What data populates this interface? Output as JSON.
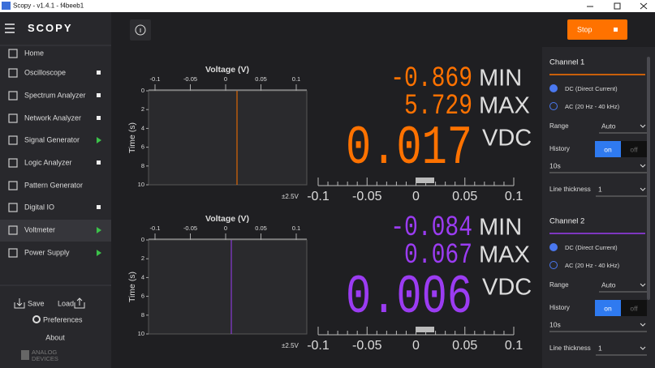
{
  "window": {
    "title": "Scopy - v1.4.1 - f4beeb1"
  },
  "sidebar": {
    "logo": "SCOPY",
    "items": [
      {
        "label": "Home"
      },
      {
        "label": "Oscilloscope"
      },
      {
        "label": "Spectrum Analyzer"
      },
      {
        "label": "Network Analyzer"
      },
      {
        "label": "Signal Generator"
      },
      {
        "label": "Logic Analyzer"
      },
      {
        "label": "Pattern Generator"
      },
      {
        "label": "Digital IO"
      },
      {
        "label": "Voltmeter"
      },
      {
        "label": "Power Supply"
      }
    ],
    "save": "Save",
    "load": "Load",
    "preferences": "Preferences",
    "about": "About",
    "brand": [
      "ANALOG",
      "DEVICES"
    ]
  },
  "toolbar": {
    "stop": "Stop"
  },
  "channels": [
    {
      "plot_title": "Voltage (V)",
      "x_ticks": [
        "-0.1",
        "-0.05",
        "0",
        "0.05",
        "0.1"
      ],
      "y_label": "Time (s)",
      "y_ticks": [
        "0",
        "2",
        "4",
        "6",
        "8",
        "10"
      ],
      "range_label": "±2.5V",
      "scale_ticks": [
        "-0.1",
        "-0.05",
        "0",
        "0.05",
        "0.1"
      ],
      "min": "-0.869",
      "min_label": "MIN",
      "max": "5.729",
      "max_label": "MAX",
      "value": "0.017",
      "unit": "VDC"
    },
    {
      "plot_title": "Voltage (V)",
      "x_ticks": [
        "-0.1",
        "-0.05",
        "0",
        "0.05",
        "0.1"
      ],
      "y_label": "Time (s)",
      "y_ticks": [
        "0",
        "2",
        "4",
        "6",
        "8",
        "10"
      ],
      "range_label": "±2.5V",
      "scale_ticks": [
        "-0.1",
        "-0.05",
        "0",
        "0.05",
        "0.1"
      ],
      "min": "-0.084",
      "min_label": "MIN",
      "max": "0.067",
      "max_label": "MAX",
      "value": "0.006",
      "unit": "VDC"
    }
  ],
  "settings": [
    {
      "title": "Channel 1",
      "dc": "DC (Direct Current)",
      "ac": "AC (20 Hz - 40 kHz)",
      "range_label": "Range",
      "range": "Auto",
      "history_label": "History",
      "on": "on",
      "off": "off",
      "history": "10s",
      "thickness_label": "Line thickness",
      "thickness": "1"
    },
    {
      "title": "Channel 2",
      "dc": "DC (Direct Current)",
      "ac": "AC (20 Hz - 40 kHz)",
      "range_label": "Range",
      "range": "Auto",
      "history_label": "History",
      "on": "on",
      "off": "off",
      "history": "10s",
      "thickness_label": "Line thickness",
      "thickness": "1"
    }
  ]
}
